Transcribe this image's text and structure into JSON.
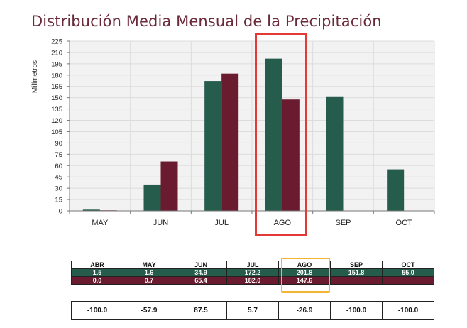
{
  "chart_data": {
    "type": "bar",
    "title": "Distribución Media Mensual de la Precipitación",
    "ylabel": "Milímetros",
    "xlabel": "",
    "ylim": [
      0,
      225
    ],
    "yticks": [
      0,
      15,
      30,
      45,
      60,
      75,
      90,
      105,
      120,
      135,
      150,
      165,
      180,
      195,
      210,
      225
    ],
    "categories": [
      "MAY",
      "JUN",
      "JUL",
      "AGO",
      "SEP",
      "OCT"
    ],
    "series": [
      {
        "color": "#255c4c",
        "values": [
          1.6,
          34.9,
          172.2,
          201.8,
          151.8,
          55.0
        ]
      },
      {
        "color": "#6a1b30",
        "values": [
          0.7,
          65.4,
          182.0,
          147.6,
          0,
          0
        ]
      }
    ],
    "grid": true,
    "legend": "none",
    "highlight_category": "AGO"
  },
  "table": {
    "headers": [
      "ABR",
      "MAY",
      "JUN",
      "JUL",
      "AGO",
      "SEP",
      "OCT"
    ],
    "row_a": [
      "1.5",
      "1.6",
      "34.9",
      "172.2",
      "201.8",
      "151.8",
      "55.0"
    ],
    "row_b": [
      "0.0",
      "0.7",
      "65.4",
      "182.0",
      "147.6",
      "",
      ""
    ],
    "diff": [
      "-100.0",
      "-57.9",
      "87.5",
      "5.7",
      "-26.9",
      "-100.0",
      "-100.0"
    ]
  },
  "colors": {
    "green": "#255c4c",
    "maroon": "#6a1b30",
    "title": "#6b2a3a",
    "highlight_red": "#e33a36",
    "highlight_gold": "#f2b534"
  }
}
